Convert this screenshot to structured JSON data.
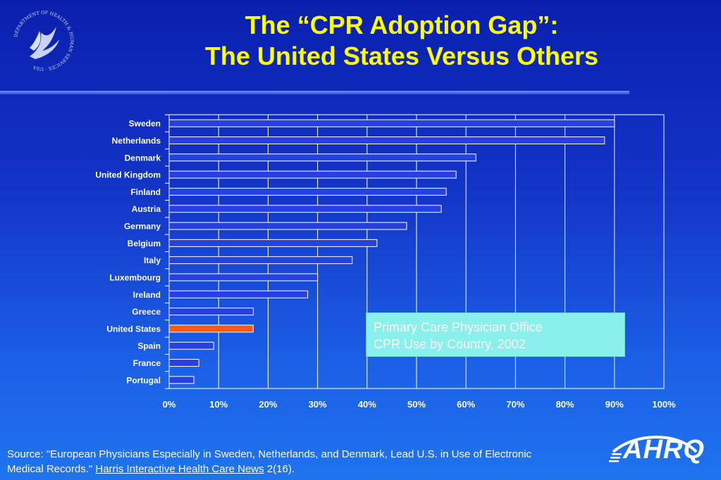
{
  "title_lines": [
    "The “CPR Adoption Gap”:",
    "The United States Versus Others"
  ],
  "seal_text": "DEPARTMENT OF HEALTH & HUMAN SERVICES · USA",
  "legend_lines": [
    "Primary Care Physician Office",
    "CPR Use by Country, 2002"
  ],
  "source": {
    "prefix": "Source:  \"European Physicians Especially in Sweden, Netherlands, and Denmark, Lead U.S. in Use of Electronic",
    "line2_start": "Medical Records.\"",
    "journal": "Harris Interactive Health Care News",
    "suffix": "2(16)."
  },
  "logo_text": "AHRQ",
  "colors": {
    "title": "#ffff00",
    "bar_fill": "#2741e0",
    "bar_highlight": "#ff5a10",
    "legend_bg": "#8af0ec"
  },
  "chart_data": {
    "type": "bar",
    "orientation": "horizontal",
    "categories": [
      "Sweden",
      "Netherlands",
      "Denmark",
      "United Kingdom",
      "Finland",
      "Austria",
      "Germany",
      "Belgium",
      "Italy",
      "Luxembourg",
      "Ireland",
      "Greece",
      "United States",
      "Spain",
      "France",
      "Portugal"
    ],
    "values": [
      90,
      88,
      62,
      58,
      56,
      55,
      48,
      42,
      37,
      30,
      28,
      17,
      17,
      9,
      6,
      5
    ],
    "highlight": "United States",
    "xlim": [
      0,
      100
    ],
    "xticks": [
      "0%",
      "10%",
      "20%",
      "30%",
      "40%",
      "50%",
      "60%",
      "70%",
      "80%",
      "90%",
      "100%"
    ],
    "grid": true
  }
}
